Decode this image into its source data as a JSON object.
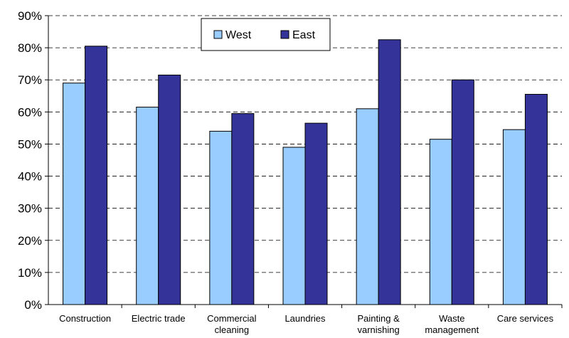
{
  "chart_data": {
    "type": "bar",
    "title": "",
    "xlabel": "",
    "ylabel": "",
    "categories": [
      [
        "Construction"
      ],
      [
        "Electric trade"
      ],
      [
        "Commercial",
        "cleaning"
      ],
      [
        "Laundries"
      ],
      [
        "Painting &",
        "varnishing"
      ],
      [
        "Waste",
        "management"
      ],
      [
        "Care services"
      ]
    ],
    "series": [
      {
        "name": "West",
        "color": "#99ccff",
        "values": [
          69,
          61.5,
          54,
          49,
          61,
          51.5,
          54.5
        ]
      },
      {
        "name": "East",
        "color": "#333399",
        "values": [
          80.5,
          71.5,
          59.5,
          56.5,
          82.5,
          70,
          65.5
        ]
      }
    ],
    "ylim": [
      0,
      90
    ],
    "yticks": [
      0,
      10,
      20,
      30,
      40,
      50,
      60,
      70,
      80,
      90
    ],
    "ytick_labels": [
      "0%",
      "10%",
      "20%",
      "30%",
      "40%",
      "50%",
      "60%",
      "70%",
      "80%",
      "90%"
    ],
    "grid": true,
    "legend": {
      "placement": "top-center",
      "items": [
        "West",
        "East"
      ]
    }
  }
}
